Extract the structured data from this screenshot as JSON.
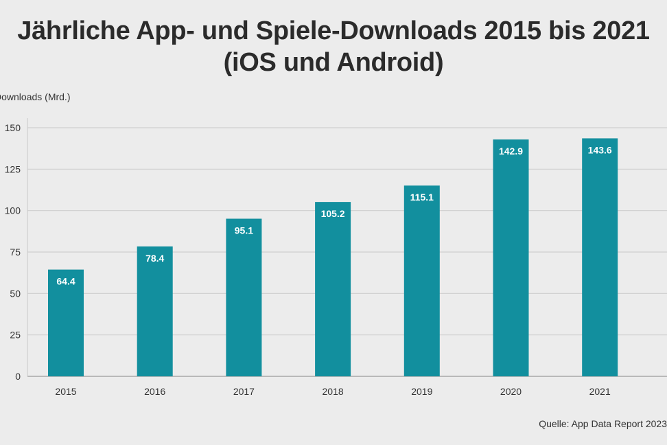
{
  "chart_data": {
    "type": "bar",
    "title_lines": [
      "Jährliche App- und Spiele-Downloads 2015 bis 2021",
      "(iOS und Android)"
    ],
    "ylabel": "Downloads (Mrd.)",
    "xlabel": "",
    "categories": [
      "2015",
      "2016",
      "2017",
      "2018",
      "2019",
      "2020",
      "2021"
    ],
    "values": [
      64.4,
      78.4,
      95.1,
      105.2,
      115.1,
      142.9,
      143.6
    ],
    "value_labels": [
      "64.4",
      "78.4",
      "95.1",
      "105.2",
      "115.1",
      "142.9",
      "143.6"
    ],
    "ylim": [
      0,
      150
    ],
    "yticks": [
      0,
      25,
      50,
      75,
      100,
      125,
      150
    ],
    "ytick_labels": [
      "0",
      "25",
      "50",
      "75",
      "100",
      "125",
      "150"
    ],
    "grid": true,
    "bar_color": "#128f9e",
    "source": "Quelle: App Data Report 2023"
  }
}
